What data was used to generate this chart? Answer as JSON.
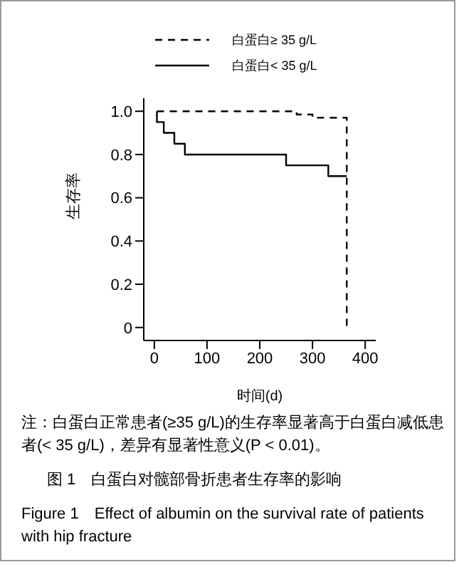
{
  "chart_data": {
    "type": "step",
    "xlabel": "时间(d)",
    "ylabel": "生存率",
    "xlim": [
      -20,
      420
    ],
    "xticks": [
      0,
      100,
      200,
      300,
      400
    ],
    "ylim": [
      -0.06,
      1.06
    ],
    "yticks": [
      {
        "value": 0,
        "label": "0"
      },
      {
        "value": 0.2,
        "label": "0.2"
      },
      {
        "value": 0.4,
        "label": "0.4"
      },
      {
        "value": 0.6,
        "label": "0.6"
      },
      {
        "value": 0.8,
        "label": "0.8"
      },
      {
        "value": 1,
        "label": "1.0"
      }
    ],
    "series": [
      {
        "name": "白蛋白≥ 35 g/L",
        "color": "#000000",
        "line_style": "dashed",
        "x": [
          5,
          270,
          300,
          365
        ],
        "values": [
          1,
          0.985,
          0.97,
          0
        ]
      },
      {
        "name": "白蛋白< 35 g/L",
        "color": "#000000",
        "line_style": "solid",
        "x": [
          5,
          5,
          18,
          38,
          58,
          250,
          330,
          365
        ],
        "values": [
          1,
          0.95,
          0.9,
          0.85,
          0.8,
          0.75,
          0.7,
          0.7
        ]
      }
    ],
    "legend": "top",
    "grid": false,
    "marker": "none",
    "annotations": [
      "注：白蛋白正常患者(≥35 g/L)的生存率显著高于白蛋白减低患者(< 35 g/L)，差异有显著性意义(P < 0.01)。",
      "图 1　白蛋白对髋部骨折患者生存率的影响",
      "Figure 1　Effect of albumin on the survival rate of patients with hip fracture"
    ]
  }
}
